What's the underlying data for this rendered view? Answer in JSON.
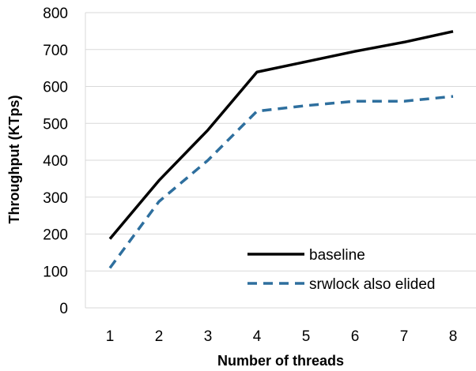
{
  "chart_data": {
    "type": "line",
    "x": [
      1,
      2,
      3,
      4,
      5,
      6,
      7,
      8
    ],
    "xlabel": "Number of threads",
    "ylabel": "Throughput (KTps)",
    "ylim": [
      0,
      800
    ],
    "yticks": [
      0,
      100,
      200,
      300,
      400,
      500,
      600,
      700,
      800
    ],
    "xticks": [
      "1",
      "2",
      "3",
      "4",
      "5",
      "6",
      "7",
      "8"
    ],
    "grid": "horizontal",
    "legend_position": "bottom-right",
    "series": [
      {
        "name": "baseline",
        "values": [
          187,
          345,
          482,
          639,
          667,
          695,
          720,
          749
        ],
        "color": "#000000",
        "style": "solid"
      },
      {
        "name": "srwlock also elided",
        "values": [
          108,
          288,
          400,
          533,
          548,
          560,
          560,
          573
        ],
        "color": "#2E6F9E",
        "style": "dashed"
      }
    ]
  }
}
